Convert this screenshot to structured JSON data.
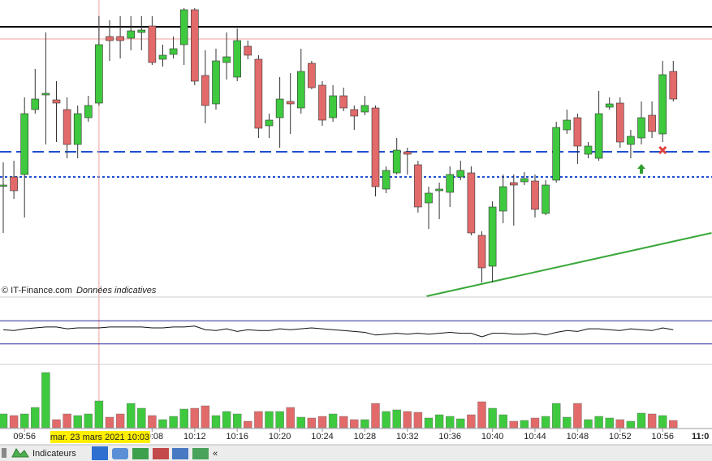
{
  "chart_data": {
    "type": "candlestick",
    "categories": [
      null,
      null,
      "09:56",
      null,
      null,
      null,
      null,
      null,
      null,
      null,
      null,
      null,
      null,
      null,
      "10:08",
      null,
      null,
      null,
      "10:12",
      null,
      null,
      null,
      "10:16",
      null,
      null,
      null,
      "10:20",
      null,
      null,
      null,
      "10:24",
      null,
      null,
      null,
      "10:28",
      null,
      null,
      null,
      "10:32",
      null,
      null,
      null,
      "10:36",
      null,
      null,
      null,
      "10:40",
      null,
      null,
      null,
      "10:44",
      null,
      null,
      null,
      "10:48",
      null,
      null,
      null,
      "10:52",
      null,
      null,
      null,
      "10:56",
      null
    ],
    "x_end_label": "11:0",
    "open": [
      132,
      142,
      145,
      225,
      243,
      237,
      225,
      182,
      215,
      233,
      315,
      315,
      313,
      320,
      328,
      287,
      293,
      305,
      348,
      267,
      232,
      283,
      265,
      303,
      287,
      205,
      215,
      235,
      227,
      282,
      255,
      215,
      242,
      225,
      222,
      227,
      127,
      147,
      173,
      157,
      110,
      125,
      123,
      142,
      147,
      70,
      32,
      100,
      135,
      136,
      137,
      97,
      138,
      200,
      215,
      170,
      165,
      228,
      233,
      182,
      190,
      218,
      195,
      272
    ],
    "high": [
      160,
      162,
      240,
      275,
      320,
      260,
      240,
      230,
      242,
      340,
      335,
      340,
      340,
      340,
      340,
      305,
      315,
      350,
      350,
      298,
      300,
      320,
      325,
      310,
      292,
      220,
      265,
      270,
      300,
      285,
      260,
      255,
      252,
      230,
      242,
      230,
      155,
      190,
      178,
      162,
      130,
      135,
      155,
      162,
      155,
      75,
      112,
      145,
      145,
      148,
      145,
      138,
      210,
      225,
      220,
      185,
      248,
      240,
      240,
      200,
      235,
      235,
      285,
      285
    ],
    "low": [
      73,
      115,
      92,
      220,
      182,
      185,
      165,
      165,
      210,
      230,
      285,
      288,
      298,
      298,
      280,
      278,
      288,
      280,
      255,
      208,
      225,
      262,
      260,
      287,
      190,
      190,
      178,
      195,
      220,
      250,
      205,
      210,
      223,
      200,
      218,
      118,
      122,
      145,
      145,
      98,
      78,
      90,
      105,
      138,
      70,
      12,
      12,
      85,
      82,
      132,
      92,
      95,
      135,
      195,
      158,
      165,
      162,
      225,
      178,
      165,
      182,
      190,
      185,
      235
    ],
    "close": [
      132,
      125,
      220,
      238,
      245,
      233,
      182,
      220,
      230,
      305,
      310,
      310,
      322,
      323,
      283,
      292,
      300,
      348,
      260,
      230,
      285,
      290,
      310,
      292,
      202,
      212,
      238,
      232,
      272,
      252,
      212,
      242,
      227,
      217,
      230,
      130,
      150,
      175,
      170,
      105,
      122,
      127,
      145,
      150,
      73,
      30,
      105,
      130,
      132,
      140,
      102,
      132,
      203,
      212,
      180,
      180,
      220,
      232,
      185,
      192,
      215,
      198,
      268,
      238
    ],
    "up_color": "#3ec93e",
    "down_color": "#e26a6a",
    "ylim": [
      -5,
      360
    ],
    "levels": [
      {
        "value": 327,
        "color": "#000000",
        "style": "solid"
      },
      {
        "value": 312,
        "color": "#f2a0a0",
        "style": "solid"
      },
      {
        "value": 173,
        "color": "#1f4fd1",
        "style": "dashed"
      },
      {
        "value": 142,
        "color": "#1f4fd1",
        "style": "dotted"
      }
    ],
    "trendline": {
      "x": [
        39.8,
        66.6
      ],
      "y": [
        -5,
        73
      ],
      "color": "#3aa83a"
    },
    "cursor_index": 9,
    "cursor_label": "mar. 23 mars 2021 10:03",
    "signals": [
      {
        "index": 62,
        "value": 175,
        "kind": "sell",
        "color": "#e04040"
      },
      {
        "index": 60,
        "value": 152,
        "kind": "buy",
        "color": "#2f9e2f"
      }
    ],
    "source": "© IT-Finance.com",
    "source_note": "Données indicatives",
    "oscillator": {
      "values": [
        18,
        17,
        19,
        20,
        21,
        21,
        19,
        20,
        20,
        20,
        21,
        21,
        21,
        21,
        20,
        20,
        21,
        21,
        22,
        18,
        17,
        19,
        16,
        18,
        17,
        17,
        19,
        18,
        19,
        20,
        19,
        18,
        17,
        16,
        15,
        12,
        13,
        14,
        13,
        14,
        13,
        14,
        15,
        14,
        14,
        10,
        14,
        14,
        13,
        13,
        14,
        12,
        15,
        17,
        16,
        19,
        19,
        18,
        17,
        19,
        18,
        17,
        20,
        18
      ],
      "ylim": [
        0,
        30
      ],
      "levels": [
        28,
        2
      ],
      "level_color": "#2a2a9a"
    },
    "volume": {
      "values": [
        17,
        15,
        17,
        25,
        68,
        10,
        17,
        15,
        17,
        33,
        13,
        17,
        30,
        24,
        15,
        10,
        14,
        23,
        24,
        27,
        15,
        20,
        17,
        8,
        20,
        20,
        20,
        25,
        13,
        12,
        14,
        17,
        14,
        10,
        10,
        30,
        20,
        22,
        20,
        19,
        12,
        16,
        14,
        11,
        16,
        32,
        24,
        16,
        8,
        9,
        12,
        14,
        30,
        13,
        30,
        10,
        14,
        12,
        10,
        8,
        18,
        17,
        15,
        9
      ],
      "ylim": [
        0,
        80
      ]
    }
  },
  "toolbar": {
    "indicators": "Indicateurs",
    "collapse": "«"
  }
}
